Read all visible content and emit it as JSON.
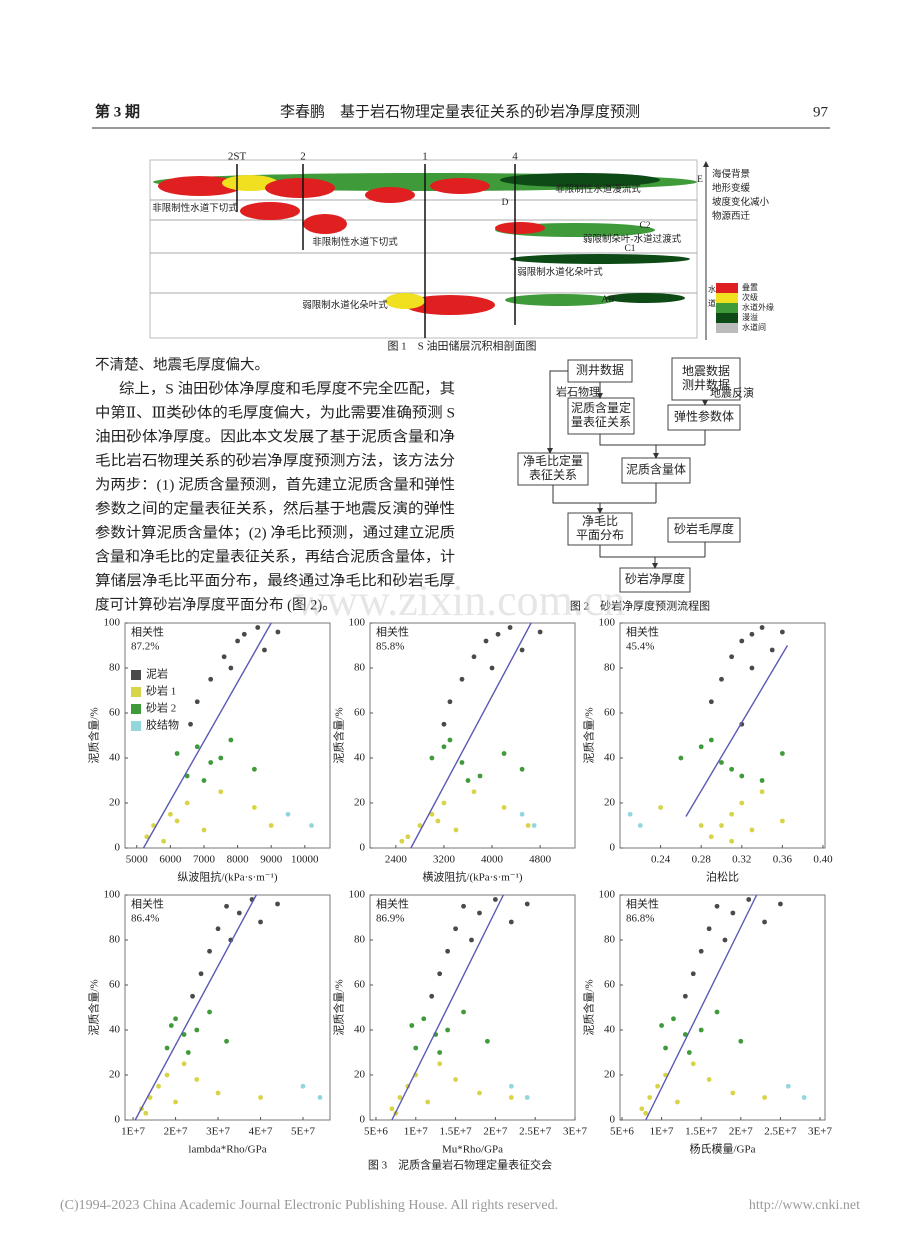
{
  "header": {
    "issue": "第 3 期",
    "title": "李春鹏　基于岩石物理定量表征关系的砂岩净厚度预测",
    "page": "97"
  },
  "figure1": {
    "wells": [
      "2ST",
      "2",
      "1",
      "4"
    ],
    "labels": [
      "E",
      "非限制性水道漫流式",
      "D",
      "非限制性水道下切式",
      "C2",
      "非限制性水道下切式",
      "弱限制朵叶-水道过渡式",
      "C1",
      "弱限制水道化朵叶式",
      "弱限制水道化朵叶式",
      "AB"
    ],
    "trend_notes": [
      "海侵背景",
      "地形变缓",
      "坡度变化减小",
      "物源西迁"
    ],
    "legend": {
      "group": [
        "水",
        "道"
      ],
      "items": [
        "叠置",
        "次级",
        "水道外缘",
        "漫溢",
        "水道间"
      ]
    },
    "caption": "图 1　S 油田储层沉积相剖面图"
  },
  "body": {
    "lines": [
      "不清楚、地震毛厚度偏大。",
      "综上，S 油田砂体净厚度和毛厚度不完全匹配，其",
      "中第Ⅱ、Ⅲ类砂体的毛厚度偏大，为此需要准确预测 S",
      "油田砂体净厚度。因此本文发展了基于泥质含量和净",
      "毛比岩石物理关系的砂岩净厚度预测方法，该方法分",
      "为两步：(1) 泥质含量预测，首先建立泥质含量和弹性",
      "参数之间的定量表征关系，然后基于地震反演的弹性",
      "参数计算泥质含量体；(2) 净毛比预测，通过建立泥质",
      "含量和净毛比的定量表征关系，再结合泥质含量体，计",
      "算储层净毛比平面分布，最终通过净毛比和砂岩毛厚",
      "度可计算砂岩净厚度平面分布 (图 2)。"
    ]
  },
  "figure2": {
    "nodes": [
      {
        "lines": [
          "测井数据"
        ]
      },
      {
        "lines": [
          "地震数据",
          "测井数据"
        ]
      },
      {
        "lines": [
          "泥质含量定",
          "量表征关系"
        ]
      },
      {
        "lines": [
          "弹性参数体"
        ]
      },
      {
        "lines": [
          "净毛比定量",
          "表征关系"
        ]
      },
      {
        "lines": [
          "泥质含量体"
        ]
      },
      {
        "lines": [
          "净毛比",
          "平面分布"
        ]
      },
      {
        "lines": [
          "砂岩毛厚度"
        ]
      },
      {
        "lines": [
          "砂岩净厚度"
        ]
      }
    ],
    "edge_labels": [
      "岩石物理",
      "地震反演"
    ],
    "caption": "图 2　砂岩净厚度预测流程图"
  },
  "figure3": {
    "caption": "图 3　泥质含量岩石物理定量表征交会",
    "legend": [
      {
        "name": "泥岩",
        "color": "#4a4a4a"
      },
      {
        "name": "砂岩 1",
        "color": "#d8d447"
      },
      {
        "name": "砂岩 2",
        "color": "#3f9a3a"
      },
      {
        "name": "胶结物",
        "color": "#93d6dc"
      }
    ],
    "charts": [
      {
        "type": "scatter",
        "correlation_title": "相关性",
        "correlation_label": "87.2%",
        "legend": true,
        "x_label": "纵波阻抗/(kPa·s·m⁻¹)",
        "y_label": "泥质含量/%",
        "xlim": [
          4650,
          10750
        ],
        "ylim": [
          0,
          100
        ],
        "xticks": [
          5000,
          6000,
          7000,
          8000,
          9000,
          10000
        ],
        "yticks": [
          0,
          20,
          40,
          60,
          80,
          100
        ],
        "series": [
          {
            "x": [
              8200,
              8000,
              8600,
              7600,
              7200,
              8800,
              6800,
              7800,
              9200,
              6600
            ],
            "y": [
              95,
              92,
              98,
              85,
              75,
              88,
              65,
              80,
              96,
              55
            ]
          },
          {
            "x": [
              5500,
              6000,
              6500,
              7000,
              5300,
              7500,
              8500,
              6200,
              5800,
              9000
            ],
            "y": [
              10,
              15,
              20,
              8,
              5,
              25,
              18,
              12,
              3,
              10
            ]
          },
          {
            "x": [
              6800,
              7200,
              6500,
              7500,
              7000,
              6200,
              7800,
              8500
            ],
            "y": [
              45,
              38,
              32,
              40,
              30,
              42,
              48,
              35
            ]
          },
          {
            "x": [
              9500,
              10200
            ],
            "y": [
              15,
              10
            ]
          }
        ],
        "fit": {
          "color": "#5a5ab4",
          "x": [
            5200,
            9000
          ],
          "y": [
            0,
            100
          ]
        }
      },
      {
        "type": "scatter",
        "correlation_title": "相关性",
        "correlation_label": "85.8%",
        "legend": false,
        "x_label": "横波阻抗/(kPa·s·m⁻¹)",
        "y_label": "泥质含量/%",
        "xlim": [
          1970,
          5380
        ],
        "ylim": [
          0,
          100
        ],
        "xticks": [
          2400,
          3200,
          4000,
          4800
        ],
        "yticks": [
          0,
          20,
          40,
          60,
          80,
          100
        ],
        "series": [
          {
            "x": [
              4100,
              3900,
              4300,
              3700,
              3500,
              4500,
              3300,
              4000,
              4800,
              3200
            ],
            "y": [
              95,
              92,
              98,
              85,
              75,
              88,
              65,
              80,
              96,
              55
            ]
          },
          {
            "x": [
              2800,
              3000,
              3200,
              3400,
              2600,
              3700,
              4200,
              3100,
              2500,
              4600
            ],
            "y": [
              10,
              15,
              20,
              8,
              5,
              25,
              18,
              12,
              3,
              10
            ]
          },
          {
            "x": [
              3200,
              3500,
              3800,
              3000,
              3600,
              4200,
              3300,
              4500
            ],
            "y": [
              45,
              38,
              32,
              40,
              30,
              42,
              48,
              35
            ]
          },
          {
            "x": [
              4500,
              4700
            ],
            "y": [
              15,
              10
            ]
          }
        ],
        "fit": {
          "color": "#5a5ab4",
          "x": [
            2650,
            4650
          ],
          "y": [
            0,
            100
          ]
        }
      },
      {
        "type": "scatter",
        "correlation_title": "相关性",
        "correlation_label": "45.4%",
        "legend": false,
        "x_label": "泊松比",
        "y_label": "泥质含量/%",
        "xlim": [
          0.2,
          0.402
        ],
        "ylim": [
          0,
          100
        ],
        "xticks": [
          0.24,
          0.28,
          0.32,
          0.36,
          {
            "value": 0.4,
            "label": "0.40"
          }
        ],
        "yticks": [
          0,
          20,
          40,
          60,
          80,
          100
        ],
        "series": [
          {
            "x": [
              0.33,
              0.32,
              0.34,
              0.31,
              0.3,
              0.35,
              0.29,
              0.33,
              0.36,
              0.32
            ],
            "y": [
              95,
              92,
              98,
              85,
              75,
              88,
              65,
              80,
              96,
              55
            ]
          },
          {
            "x": [
              0.3,
              0.31,
              0.32,
              0.33,
              0.29,
              0.34,
              0.24,
              0.36,
              0.31,
              0.28
            ],
            "y": [
              10,
              15,
              20,
              8,
              5,
              25,
              18,
              12,
              3,
              10
            ]
          },
          {
            "x": [
              0.28,
              0.3,
              0.32,
              0.26,
              0.34,
              0.36,
              0.29,
              0.31
            ],
            "y": [
              45,
              38,
              32,
              40,
              30,
              42,
              48,
              35
            ]
          },
          {
            "x": [
              0.21,
              0.22
            ],
            "y": [
              15,
              10
            ]
          }
        ],
        "fit": {
          "color": "#5a5ab4",
          "x": [
            0.265,
            0.365
          ],
          "y": [
            14,
            90
          ]
        }
      },
      {
        "type": "scatter",
        "correlation_title": "相关性",
        "correlation_label": "86.4%",
        "legend": false,
        "x_label": "lambda*Rho/GPa",
        "y_label": "泥质含量/%",
        "xlim": [
          8100000,
          56350000
        ],
        "ylim": [
          0,
          100
        ],
        "xticks": [
          {
            "value": 10000000,
            "label": "1E+7"
          },
          {
            "value": 20000000,
            "label": "2E+7"
          },
          {
            "value": 30000000,
            "label": "3E+7"
          },
          {
            "value": 40000000,
            "label": "4E+7"
          },
          {
            "value": 50000000,
            "label": "5E+7"
          }
        ],
        "yticks": [
          0,
          20,
          40,
          60,
          80,
          100
        ],
        "series": [
          {
            "x": [
              32000000,
              35000000,
              38000000,
              30000000,
              28000000,
              40000000,
              26000000,
              33000000,
              44000000,
              24000000
            ],
            "y": [
              95,
              92,
              98,
              85,
              75,
              88,
              65,
              80,
              96,
              55
            ]
          },
          {
            "x": [
              14000000,
              16000000,
              18000000,
              20000000,
              12000000,
              22000000,
              25000000,
              30000000,
              13000000,
              40000000
            ],
            "y": [
              10,
              15,
              20,
              8,
              5,
              25,
              18,
              12,
              3,
              10
            ]
          },
          {
            "x": [
              20000000,
              22000000,
              18000000,
              25000000,
              23000000,
              19000000,
              28000000,
              32000000
            ],
            "y": [
              45,
              38,
              32,
              40,
              30,
              42,
              48,
              35
            ]
          },
          {
            "x": [
              50000000,
              54000000
            ],
            "y": [
              15,
              10
            ]
          }
        ],
        "fit": {
          "color": "#5a5ab4",
          "x": [
            10500000,
            39000000
          ],
          "y": [
            0,
            100
          ]
        }
      },
      {
        "type": "scatter",
        "correlation_title": "相关性",
        "correlation_label": "86.9%",
        "legend": false,
        "x_label": "Mu*Rho/GPa",
        "y_label": "泥质含量/%",
        "xlim": [
          4250000,
          30000000
        ],
        "ylim": [
          0,
          100
        ],
        "xticks": [
          {
            "value": 5000000,
            "label": "5E+6"
          },
          {
            "value": 10000000,
            "label": "1E+7"
          },
          {
            "value": 15000000,
            "label": "1.5E+7"
          },
          {
            "value": 20000000,
            "label": "2E+7"
          },
          {
            "value": 25000000,
            "label": "2.5E+7"
          },
          {
            "value": 30000000,
            "label": "3E+7"
          }
        ],
        "yticks": [
          0,
          20,
          40,
          60,
          80,
          100
        ],
        "series": [
          {
            "x": [
              16000000,
              18000000,
              20000000,
              15000000,
              14000000,
              22000000,
              13000000,
              17000000,
              24000000,
              12000000
            ],
            "y": [
              95,
              92,
              98,
              85,
              75,
              88,
              65,
              80,
              96,
              55
            ]
          },
          {
            "x": [
              8000000,
              9000000,
              10000000,
              11500000,
              7000000,
              13000000,
              15000000,
              18000000,
              7500000,
              22000000
            ],
            "y": [
              10,
              15,
              20,
              8,
              5,
              25,
              18,
              12,
              3,
              10
            ]
          },
          {
            "x": [
              11000000,
              12500000,
              10000000,
              14000000,
              13000000,
              9500000,
              16000000,
              19000000
            ],
            "y": [
              45,
              38,
              32,
              40,
              30,
              42,
              48,
              35
            ]
          },
          {
            "x": [
              22000000,
              24000000
            ],
            "y": [
              15,
              10
            ]
          }
        ],
        "fit": {
          "color": "#5a5ab4",
          "x": [
            7000000,
            21000000
          ],
          "y": [
            0,
            100
          ]
        }
      },
      {
        "type": "scatter",
        "correlation_title": "相关性",
        "correlation_label": "86.8%",
        "legend": false,
        "x_label": "杨氏模量/GPa",
        "y_label": "泥质含量/%",
        "xlim": [
          4750000,
          30630000
        ],
        "ylim": [
          0,
          100
        ],
        "xticks": [
          {
            "value": 5000000,
            "label": "5E+6"
          },
          {
            "value": 10000000,
            "label": "1E+7"
          },
          {
            "value": 15000000,
            "label": "1.5E+7"
          },
          {
            "value": 20000000,
            "label": "2E+7"
          },
          {
            "value": 25000000,
            "label": "2.5E+7"
          },
          {
            "value": 30000000,
            "label": "3E+7"
          }
        ],
        "yticks": [
          0,
          20,
          40,
          60,
          80,
          100
        ],
        "series": [
          {
            "x": [
              17000000,
              19000000,
              21000000,
              16000000,
              15000000,
              23000000,
              14000000,
              18000000,
              25000000,
              13000000
            ],
            "y": [
              95,
              92,
              98,
              85,
              75,
              88,
              65,
              80,
              96,
              55
            ]
          },
          {
            "x": [
              8500000,
              9500000,
              10500000,
              12000000,
              7500000,
              14000000,
              16000000,
              19000000,
              8000000,
              23000000
            ],
            "y": [
              10,
              15,
              20,
              8,
              5,
              25,
              18,
              12,
              3,
              10
            ]
          },
          {
            "x": [
              11500000,
              13000000,
              10500000,
              15000000,
              13500000,
              10000000,
              17000000,
              20000000
            ],
            "y": [
              45,
              38,
              32,
              40,
              30,
              42,
              48,
              35
            ]
          },
          {
            "x": [
              26000000,
              28000000
            ],
            "y": [
              15,
              10
            ]
          }
        ],
        "fit": {
          "color": "#5a5ab4",
          "x": [
            8000000,
            22000000
          ],
          "y": [
            0,
            100
          ]
        }
      }
    ]
  },
  "watermark": "www.zixin.com.cn",
  "footer": {
    "copyright": "(C)1994-2023 China Academic Journal Electronic Publishing House. All rights reserved.",
    "url": "http://www.cnki.net"
  }
}
